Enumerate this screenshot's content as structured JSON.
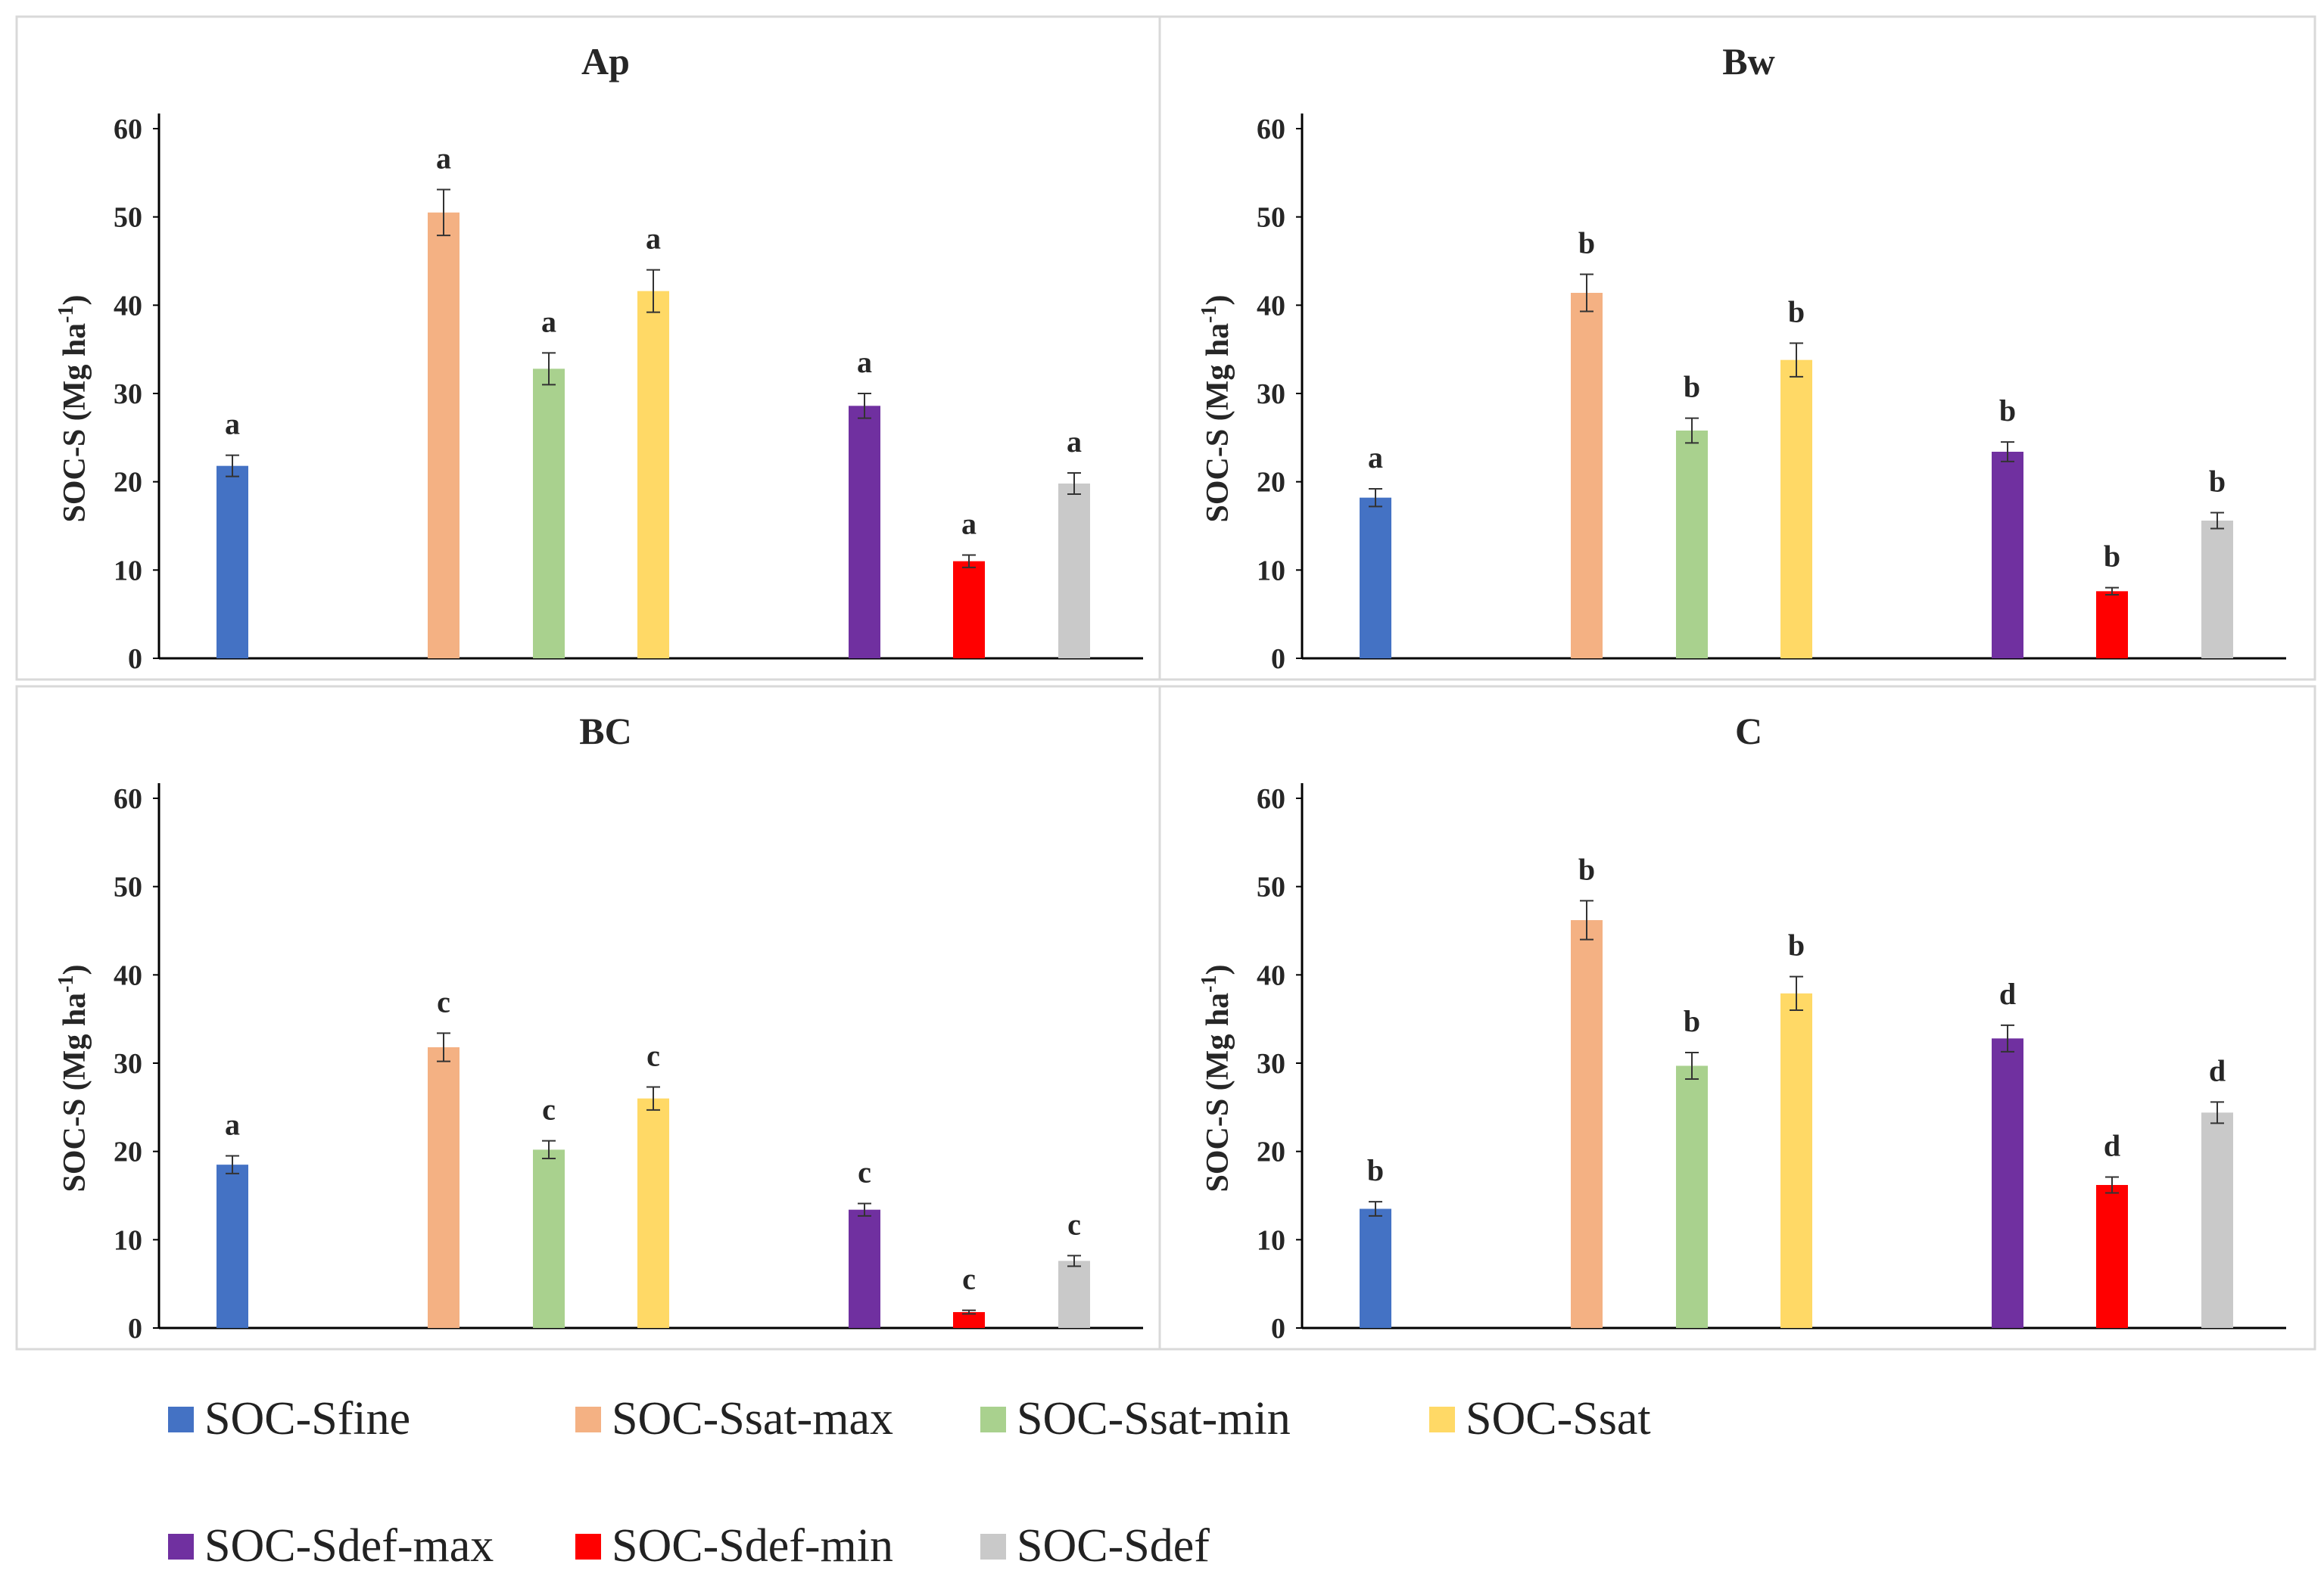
{
  "chart_data": [
    {
      "type": "bar",
      "title": "Ap",
      "ylabel": "SOC-S (Mg ha-1)",
      "ylim": [
        0,
        60
      ],
      "yticks": [
        0,
        10,
        20,
        30,
        40,
        50,
        60
      ],
      "categories": [
        "SOC-Sfine",
        "SOC-Ssat-max",
        "SOC-Ssat-min",
        "SOC-Ssat",
        "SOC-Sdef-max",
        "SOC-Sdef-min",
        "SOC-Sdef"
      ],
      "values": [
        21.8,
        50.5,
        32.8,
        41.6,
        28.6,
        11.0,
        19.8
      ],
      "errors": [
        1.2,
        2.6,
        1.8,
        2.4,
        1.4,
        0.7,
        1.2
      ],
      "letters": [
        "a",
        "a",
        "a",
        "a",
        "a",
        "a",
        "a"
      ]
    },
    {
      "type": "bar",
      "title": "Bw",
      "ylabel": "SOC-S (Mg ha-1)",
      "ylim": [
        0,
        60
      ],
      "yticks": [
        0,
        10,
        20,
        30,
        40,
        50,
        60
      ],
      "categories": [
        "SOC-Sfine",
        "SOC-Ssat-max",
        "SOC-Ssat-min",
        "SOC-Ssat",
        "SOC-Sdef-max",
        "SOC-Sdef-min",
        "SOC-Sdef"
      ],
      "values": [
        18.2,
        41.4,
        25.8,
        33.8,
        23.4,
        7.6,
        15.6
      ],
      "errors": [
        1.0,
        2.1,
        1.4,
        1.9,
        1.1,
        0.4,
        0.9
      ],
      "letters": [
        "a",
        "b",
        "b",
        "b",
        "b",
        "b",
        "b"
      ]
    },
    {
      "type": "bar",
      "title": "BC",
      "ylabel": "SOC-S (Mg ha-1)",
      "ylim": [
        0,
        60
      ],
      "yticks": [
        0,
        10,
        20,
        30,
        40,
        50,
        60
      ],
      "categories": [
        "SOC-Sfine",
        "SOC-Ssat-max",
        "SOC-Ssat-min",
        "SOC-Ssat",
        "SOC-Sdef-max",
        "SOC-Sdef-min",
        "SOC-Sdef"
      ],
      "values": [
        18.5,
        31.8,
        20.2,
        26.0,
        13.4,
        1.8,
        7.6
      ],
      "errors": [
        1.0,
        1.6,
        1.0,
        1.3,
        0.7,
        0.2,
        0.6
      ],
      "letters": [
        "a",
        "c",
        "c",
        "c",
        "c",
        "c",
        "c"
      ]
    },
    {
      "type": "bar",
      "title": "C",
      "ylabel": "SOC-S (Mg ha-1)",
      "ylim": [
        0,
        60
      ],
      "yticks": [
        0,
        10,
        20,
        30,
        40,
        50,
        60
      ],
      "categories": [
        "SOC-Sfine",
        "SOC-Ssat-max",
        "SOC-Ssat-min",
        "SOC-Ssat",
        "SOC-Sdef-max",
        "SOC-Sdef-min",
        "SOC-Sdef"
      ],
      "values": [
        13.5,
        46.2,
        29.7,
        37.9,
        32.8,
        16.2,
        24.4
      ],
      "errors": [
        0.8,
        2.2,
        1.5,
        1.9,
        1.5,
        0.9,
        1.2
      ],
      "letters": [
        "b",
        "b",
        "b",
        "b",
        "d",
        "d",
        "d"
      ]
    }
  ],
  "legend": [
    {
      "label": "SOC-Sfine",
      "color": "#4472C4"
    },
    {
      "label": "SOC-Ssat-max",
      "color": "#F4B183"
    },
    {
      "label": "SOC-Ssat-min",
      "color": "#A9D18E"
    },
    {
      "label": "SOC-Ssat",
      "color": "#FFD966"
    },
    {
      "label": "SOC-Sdef-max",
      "color": "#7030A0"
    },
    {
      "label": "SOC-Sdef-min",
      "color": "#FF0000"
    },
    {
      "label": "SOC-Sdef",
      "color": "#C9C9C9"
    }
  ]
}
